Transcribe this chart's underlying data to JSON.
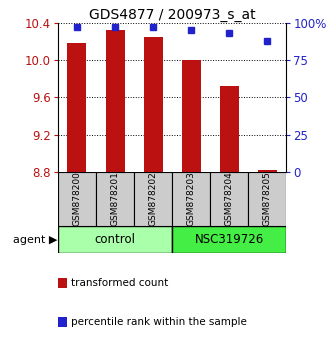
{
  "title": "GDS4877 / 200973_s_at",
  "samples": [
    "GSM878200",
    "GSM878201",
    "GSM878202",
    "GSM878203",
    "GSM878204",
    "GSM878205"
  ],
  "bar_values": [
    10.18,
    10.33,
    10.25,
    10.0,
    9.72,
    8.82
  ],
  "bar_base": 8.8,
  "percentile_values": [
    97,
    97,
    97,
    95,
    93,
    88
  ],
  "ylim": [
    8.8,
    10.4
  ],
  "yticks": [
    8.8,
    9.2,
    9.6,
    10.0,
    10.4
  ],
  "y2ticks": [
    0,
    25,
    50,
    75,
    100
  ],
  "bar_color": "#bb1111",
  "dot_color": "#2222cc",
  "left_axis_color": "#bb1111",
  "right_axis_color": "#2222cc",
  "sample_box_color": "#cccccc",
  "group1_label": "control",
  "group1_indices": [
    0,
    1,
    2
  ],
  "group2_label": "NSC319726",
  "group2_indices": [
    3,
    4,
    5
  ],
  "group1_color": "#aaffaa",
  "group2_color": "#44ee44",
  "agent_label": "agent",
  "legend_bar_label": "transformed count",
  "legend_dot_label": "percentile rank within the sample",
  "bar_width": 0.5
}
